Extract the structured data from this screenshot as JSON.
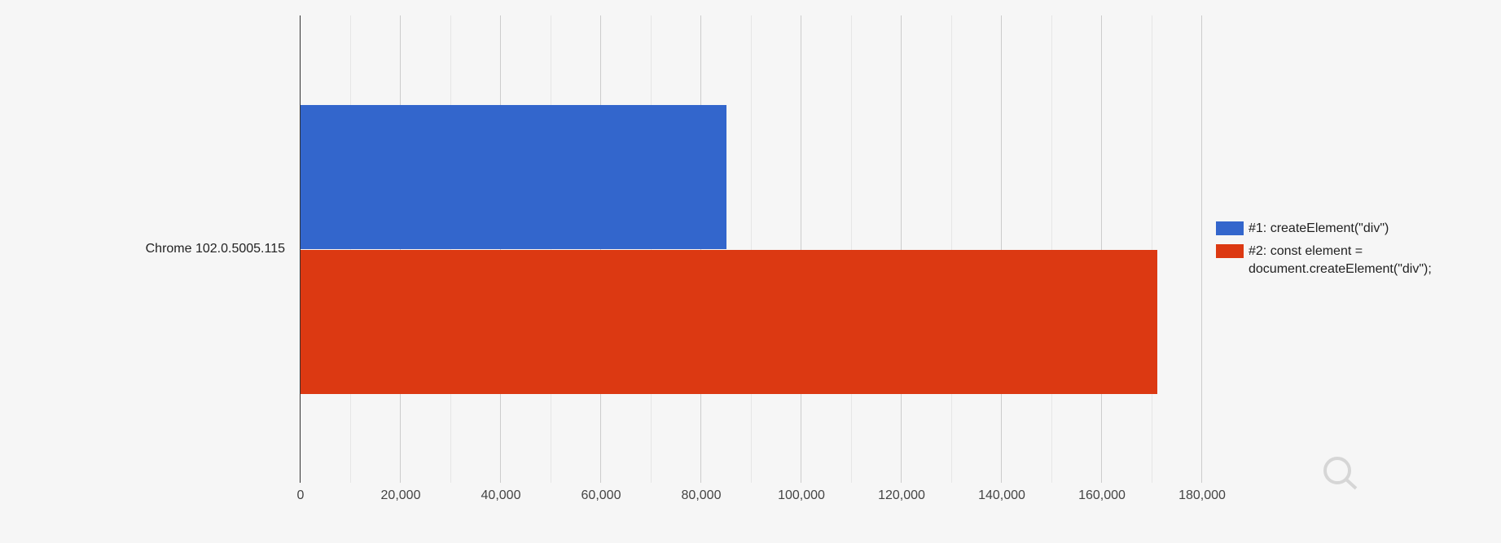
{
  "chart_data": {
    "type": "bar",
    "orientation": "horizontal",
    "title": "",
    "xlabel": "",
    "ylabel": "",
    "categories": [
      "Chrome 102.0.5005.115"
    ],
    "series": [
      {
        "name": "#1: createElement(\"div\")",
        "values": [
          85000
        ],
        "color": "#3366cc"
      },
      {
        "name": "#2: const element = document.createElement(\"div\");",
        "values": [
          171000
        ],
        "color": "#dc3912"
      }
    ],
    "xlim": [
      0,
      180000
    ],
    "x_ticks": [
      "0",
      "20,000",
      "40,000",
      "60,000",
      "80,000",
      "100,000",
      "120,000",
      "140,000",
      "160,000",
      "180,000"
    ],
    "grid": true,
    "legend_position": "right"
  },
  "legend": {
    "items": [
      {
        "line1": "#1: createElement(\"div\")",
        "line2": "",
        "color": "#3366cc"
      },
      {
        "line1": "#2: const element =",
        "line2": "document.createElement(\"div\");",
        "color": "#dc3912"
      }
    ]
  },
  "icons": {
    "zoom": "magnifier-icon"
  }
}
